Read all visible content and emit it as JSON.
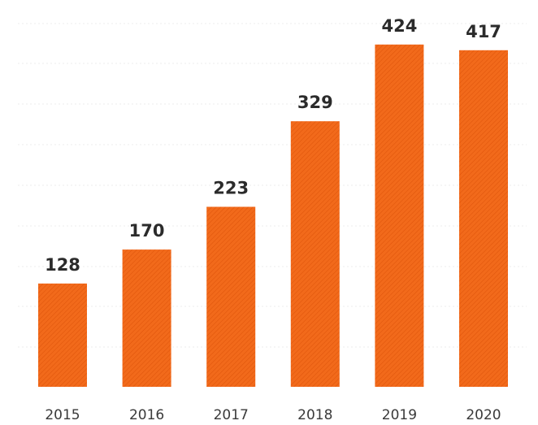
{
  "chart_data": {
    "type": "bar",
    "categories": [
      "2015",
      "2016",
      "2017",
      "2018",
      "2019",
      "2020"
    ],
    "values": [
      128,
      170,
      223,
      329,
      424,
      417
    ],
    "data_labels": [
      "128",
      "170",
      "223",
      "329",
      "424",
      "417"
    ],
    "title": "",
    "xlabel": "",
    "ylabel": "",
    "ylim": [
      0,
      450
    ],
    "grid": true,
    "legend": "none",
    "colors": {
      "bar": "#f26a1b",
      "bar_hatch": "#e0560c",
      "grid": "#ececec",
      "label": "#2b2b2b"
    }
  }
}
